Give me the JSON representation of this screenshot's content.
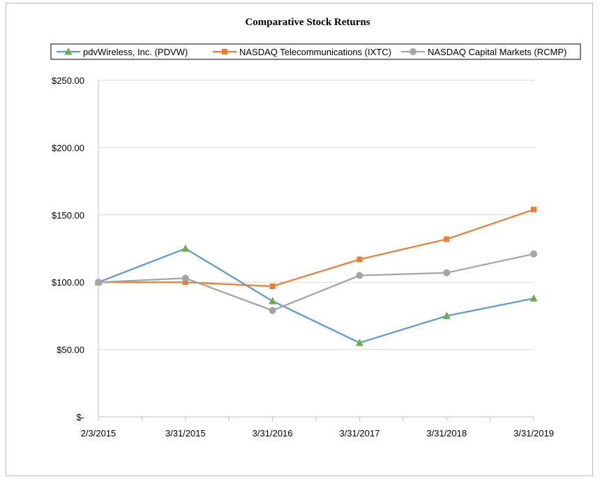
{
  "chart_data": {
    "type": "line",
    "title": "Comparative Stock Returns",
    "xlabel": "",
    "ylabel": "",
    "categories": [
      "2/3/2015",
      "3/31/2015",
      "3/31/2016",
      "3/31/2017",
      "3/31/2018",
      "3/31/2019"
    ],
    "y_tick_values": [
      0,
      50,
      100,
      150,
      200,
      250
    ],
    "y_tick_labels": [
      "$-",
      "$50.00",
      "$100.00",
      "$150.00",
      "$200.00",
      "$250.00"
    ],
    "ylim": [
      0,
      250
    ],
    "grid": "horizontal",
    "legend_position": "top",
    "series": [
      {
        "name": "pdvWireless, Inc. (PDVW)",
        "color": "#5b9bd5",
        "marker": "triangle",
        "marker_color": "#70ad47",
        "values": [
          100,
          125,
          86,
          55,
          75,
          88
        ]
      },
      {
        "name": "NASDAQ Telecommunications (IXTC)",
        "color": "#ed7d31",
        "marker": "square",
        "marker_color": "#ed7d31",
        "values": [
          100,
          100,
          97,
          117,
          132,
          154
        ]
      },
      {
        "name": "NASDAQ Capital Markets (RCMP)",
        "color": "#a5a5a5",
        "marker": "circle",
        "marker_color": "#a5a5a5",
        "values": [
          100,
          103,
          79,
          105,
          107,
          121
        ]
      }
    ]
  }
}
